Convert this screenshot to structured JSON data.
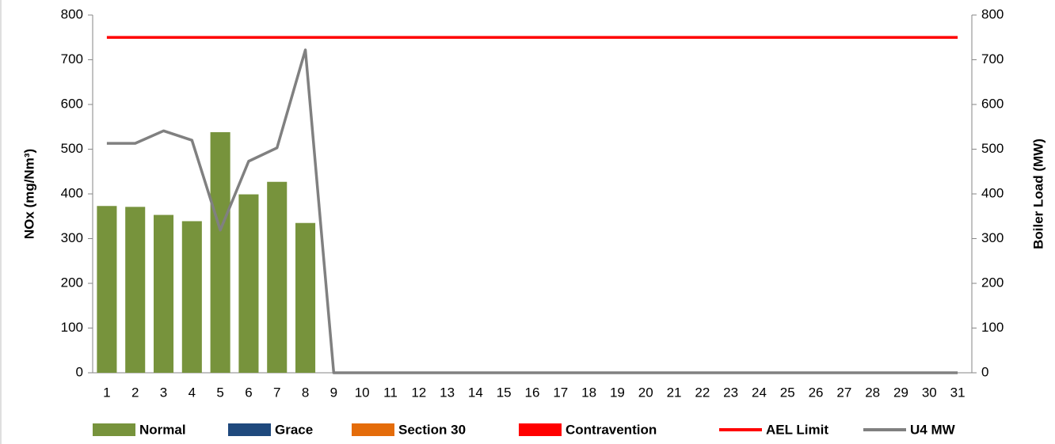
{
  "chart_data": {
    "type": "bar",
    "categories": [
      "1",
      "2",
      "3",
      "4",
      "5",
      "6",
      "7",
      "8",
      "9",
      "10",
      "11",
      "12",
      "13",
      "14",
      "15",
      "16",
      "17",
      "18",
      "19",
      "20",
      "21",
      "22",
      "23",
      "24",
      "25",
      "26",
      "27",
      "28",
      "29",
      "30",
      "31"
    ],
    "ylabel": "NOx (mg/Nm³)",
    "y2label": "Boiler Load (MW)",
    "ylim": [
      0,
      800
    ],
    "yticks": [
      0,
      100,
      200,
      300,
      400,
      500,
      600,
      700,
      800
    ],
    "y2lim": [
      0,
      800
    ],
    "y2ticks": [
      0,
      100,
      200,
      300,
      400,
      500,
      600,
      700,
      800
    ],
    "grid": false,
    "legend": "bottom",
    "series": [
      {
        "name": "Normal",
        "type": "bar",
        "color": "#77933c",
        "values": [
          373,
          371,
          353,
          339,
          538,
          399,
          427,
          335,
          null,
          null,
          null,
          null,
          null,
          null,
          null,
          null,
          null,
          null,
          null,
          null,
          null,
          null,
          null,
          null,
          null,
          null,
          null,
          null,
          null,
          null,
          null
        ]
      },
      {
        "name": "Grace",
        "type": "bar",
        "color": "#1f497d",
        "values": [
          null,
          null,
          null,
          null,
          null,
          null,
          null,
          null,
          null,
          null,
          null,
          null,
          null,
          null,
          null,
          null,
          null,
          null,
          null,
          null,
          null,
          null,
          null,
          null,
          null,
          null,
          null,
          null,
          null,
          null,
          null
        ]
      },
      {
        "name": "Section 30",
        "type": "bar",
        "color": "#e46c0a",
        "values": [
          null,
          null,
          null,
          null,
          null,
          null,
          null,
          null,
          null,
          null,
          null,
          null,
          null,
          null,
          null,
          null,
          null,
          null,
          null,
          null,
          null,
          null,
          null,
          null,
          null,
          null,
          null,
          null,
          null,
          null,
          null
        ]
      },
      {
        "name": "Contravention",
        "type": "bar",
        "color": "#ff0000",
        "values": [
          null,
          null,
          null,
          null,
          null,
          null,
          null,
          null,
          null,
          null,
          null,
          null,
          null,
          null,
          null,
          null,
          null,
          null,
          null,
          null,
          null,
          null,
          null,
          null,
          null,
          null,
          null,
          null,
          null,
          null,
          null
        ]
      },
      {
        "name": "AEL Limit",
        "type": "line",
        "color": "#ff0000",
        "values": [
          750,
          750,
          750,
          750,
          750,
          750,
          750,
          750,
          750,
          750,
          750,
          750,
          750,
          750,
          750,
          750,
          750,
          750,
          750,
          750,
          750,
          750,
          750,
          750,
          750,
          750,
          750,
          750,
          750,
          750,
          750
        ]
      },
      {
        "name": "U4 MW",
        "type": "line",
        "axis": "y2",
        "color": "#808080",
        "values": [
          513,
          513,
          541,
          520,
          319,
          473,
          503,
          722,
          0,
          0,
          0,
          0,
          0,
          0,
          0,
          0,
          0,
          0,
          0,
          0,
          0,
          0,
          0,
          0,
          0,
          0,
          0,
          0,
          0,
          0,
          0
        ]
      }
    ]
  }
}
